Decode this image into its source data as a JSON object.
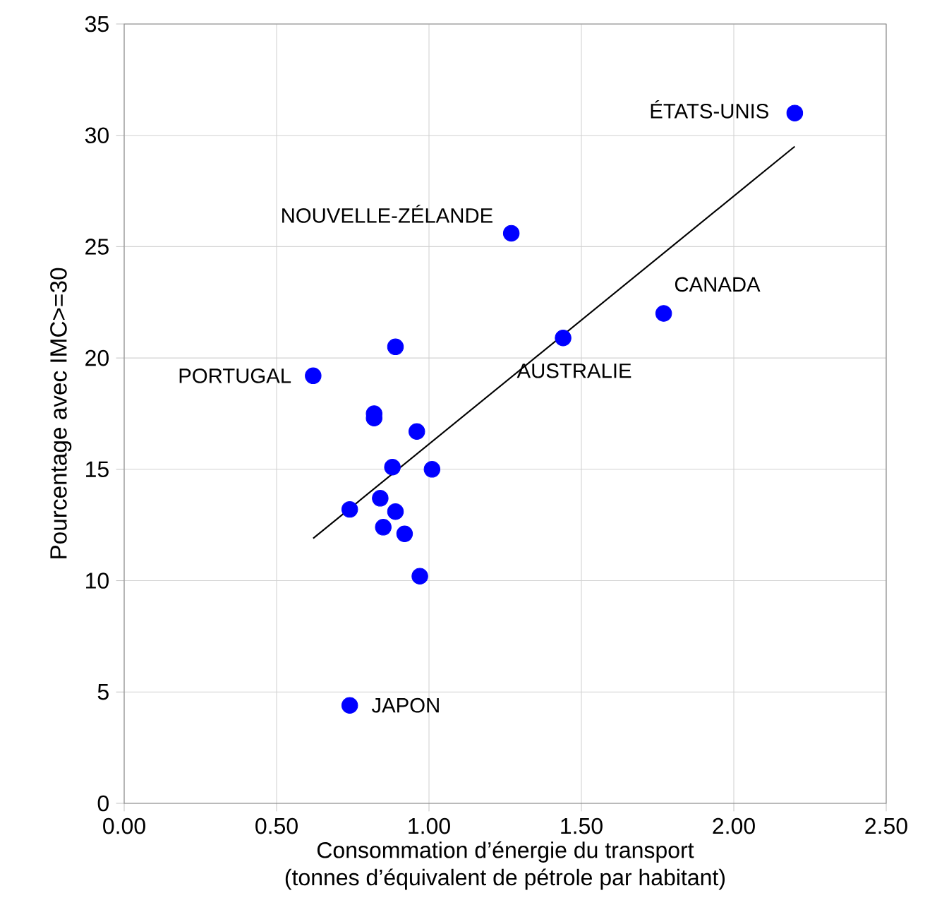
{
  "chart_data": {
    "type": "scatter",
    "xlabel": "Consommation d’énergie du transport\n(tonnes d’équivalent de pétrole par habitant)",
    "ylabel": "Pourcentage avec IMC>=30",
    "xlim": [
      0,
      2.5
    ],
    "ylim": [
      0,
      35
    ],
    "xticks": [
      {
        "value": 0,
        "label": "0.00"
      },
      {
        "value": 0.5,
        "label": "0.50"
      },
      {
        "value": 1,
        "label": "1.00"
      },
      {
        "value": 1.5,
        "label": "1.50"
      },
      {
        "value": 2,
        "label": "2.00"
      },
      {
        "value": 2.5,
        "label": "2.50"
      }
    ],
    "yticks": [
      0,
      5,
      10,
      15,
      20,
      25,
      30,
      35
    ],
    "grid": true,
    "marker": "circle",
    "series": [
      {
        "color": "#0000ff",
        "x": [
          2.2,
          1.27,
          1.77,
          1.44,
          0.62,
          0.74,
          0.89,
          0.82,
          0.82,
          0.96,
          0.88,
          1.01,
          0.74,
          0.84,
          0.89,
          0.85,
          0.92,
          0.97
        ],
        "values": [
          31.0,
          25.6,
          22.0,
          20.9,
          19.2,
          4.4,
          20.5,
          17.5,
          17.3,
          16.7,
          15.1,
          15.0,
          13.2,
          13.7,
          13.1,
          12.4,
          12.1,
          10.2
        ]
      },
      {
        "type": "line",
        "color": "#000000",
        "marker": "none",
        "x": [
          0.62,
          2.2
        ],
        "values": [
          11.9,
          29.5
        ]
      }
    ],
    "annotations": [
      {
        "text": "ÉTATS-UNIS",
        "x": 2.2,
        "y": 31.0
      },
      {
        "text": "NOUVELLE-ZÉLANDE",
        "x": 1.27,
        "y": 25.6
      },
      {
        "text": "CANADA",
        "x": 1.77,
        "y": 22.0
      },
      {
        "text": "AUSTRALIE",
        "x": 1.44,
        "y": 20.9
      },
      {
        "text": "PORTUGAL",
        "x": 0.62,
        "y": 19.2
      },
      {
        "text": "JAPON",
        "x": 0.74,
        "y": 4.4
      }
    ]
  }
}
